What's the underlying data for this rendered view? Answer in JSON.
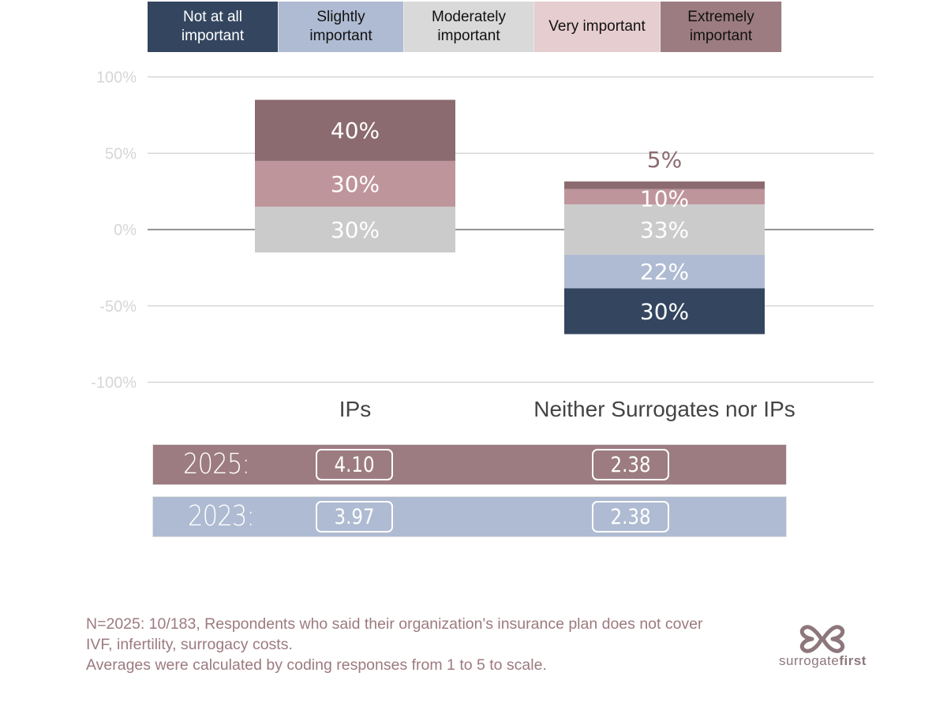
{
  "legend": [
    {
      "label_line1": "Not at all",
      "label_line2": "important",
      "color": "#34465f",
      "text_color": "#ffffff"
    },
    {
      "label_line1": "Slightly",
      "label_line2": "important",
      "color": "#aebbd2",
      "text_color": "#111111"
    },
    {
      "label_line1": "Moderately",
      "label_line2": "important",
      "color": "#d9d9d9",
      "text_color": "#111111"
    },
    {
      "label_line1": "Very important",
      "label_line2": "",
      "color": "#e6cdd0",
      "text_color": "#111111"
    },
    {
      "label_line1": "Extremely",
      "label_line2": "important",
      "color": "#9c7c80",
      "text_color": "#111111"
    }
  ],
  "chart_data": {
    "type": "bar",
    "subtype": "diverging-stacked",
    "title": "",
    "xlabel": "",
    "ylabel": "",
    "ylim": [
      -100,
      100
    ],
    "yticks": [
      100,
      50,
      0,
      -50,
      -100
    ],
    "ytick_labels": [
      "100%",
      "50%",
      "0%",
      "-50%",
      "-100%"
    ],
    "grid": true,
    "legend_position": "top",
    "categories": [
      "IPs",
      "Neither Surrogates nor IPs"
    ],
    "series": [
      {
        "name": "Not at all important",
        "color": "#34465f",
        "values": [
          0,
          30
        ],
        "labels": [
          "",
          "30%"
        ]
      },
      {
        "name": "Slightly important",
        "color": "#aebbd2",
        "values": [
          0,
          22
        ],
        "labels": [
          "",
          "22%"
        ]
      },
      {
        "name": "Moderately important",
        "color": "#cbcbcb",
        "values": [
          30,
          33
        ],
        "labels": [
          "30%",
          "33%"
        ]
      },
      {
        "name": "Very important",
        "color": "#bf959c",
        "values": [
          30,
          10
        ],
        "labels": [
          "30%",
          "10%"
        ]
      },
      {
        "name": "Extremely important",
        "color": "#8b6b70",
        "values": [
          40,
          5
        ],
        "labels": [
          "40%",
          "5%"
        ]
      }
    ],
    "neutral_split": "Moderately important centered on 0%"
  },
  "averages": {
    "rows": [
      {
        "year_label": "2025:",
        "values": [
          "4.10",
          "2.38"
        ],
        "color": "#9c7c80"
      },
      {
        "year_label": "2023:",
        "values": [
          "3.97",
          "2.38"
        ],
        "color": "#aebbd2"
      }
    ]
  },
  "footnote": {
    "line1": "N=2025: 10/183, Respondents who said their organization's insurance plan does not cover",
    "line2": "IVF, infertility, surrogacy costs.",
    "line3": "Averages were calculated by coding responses from 1 to 5 to scale."
  },
  "logo": {
    "brand_light": "surrogate",
    "brand_bold": "first",
    "color": "#8d777c"
  }
}
